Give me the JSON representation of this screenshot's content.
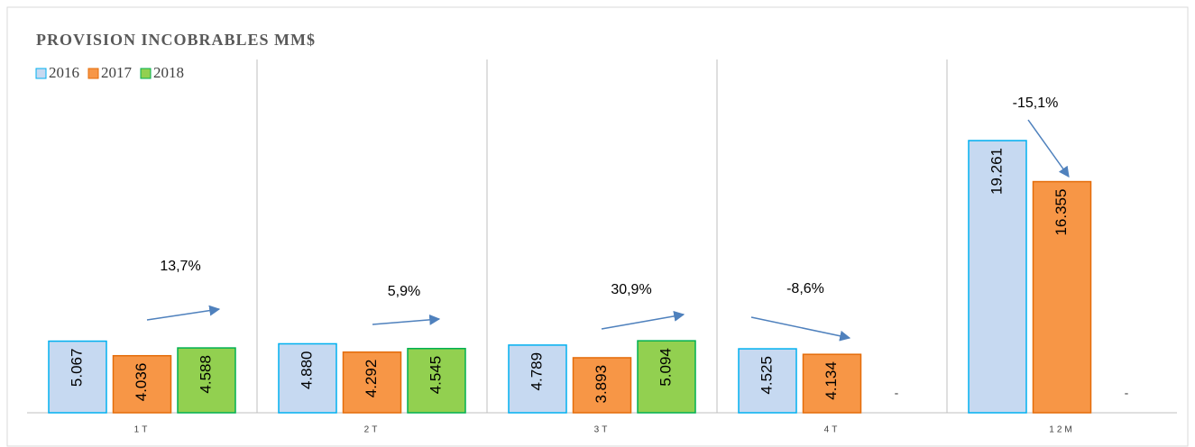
{
  "chart_data": {
    "type": "bar",
    "title": "PROVISION INCOBRABLES MM$",
    "categories": [
      "1T",
      "2T",
      "3T",
      "4T",
      "12M"
    ],
    "series": [
      {
        "name": "2016",
        "color": "#c6d9f1",
        "stroke": "#00b0f0",
        "values": [
          5.067,
          4.88,
          4.789,
          4.525,
          19.261
        ],
        "value_labels": [
          "5.067",
          "4.880",
          "4.789",
          "4.525",
          "19.261"
        ]
      },
      {
        "name": "2017",
        "color": "#f79646",
        "stroke": "#e46c0a",
        "values": [
          4.036,
          4.292,
          3.893,
          4.134,
          16.355
        ],
        "value_labels": [
          "4.036",
          "4.292",
          "3.893",
          "4.134",
          "16.355"
        ]
      },
      {
        "name": "2018",
        "color": "#92d050",
        "stroke": "#00b050",
        "values": [
          4.588,
          4.545,
          5.094,
          null,
          null
        ],
        "value_labels": [
          "4.588",
          "4.545",
          "5.094",
          "-",
          "-"
        ]
      }
    ],
    "annotations": [
      "13,7%",
      "5,9%",
      "30,9%",
      "-8,6%",
      "-15,1%"
    ],
    "ylim": [
      0,
      25
    ]
  }
}
